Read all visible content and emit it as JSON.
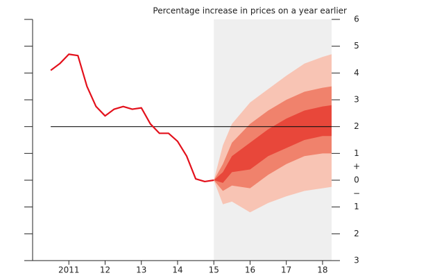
{
  "chart_data": {
    "type": "line",
    "title": "Percentage increase in prices on a year earlier",
    "x": [
      2010.5,
      2010.75,
      2011,
      2011.25,
      2011.5,
      2011.75,
      2012,
      2012.25,
      2012.5,
      2012.75,
      2013,
      2013.25,
      2013.5,
      2013.75,
      2014,
      2014.25,
      2014.5,
      2014.75,
      2015
    ],
    "series": [
      {
        "color": "#e3101b",
        "values": [
          4.1,
          4.35,
          4.7,
          4.65,
          3.5,
          2.75,
          2.4,
          2.65,
          2.75,
          2.65,
          2.7,
          2.1,
          1.75,
          1.75,
          1.45,
          0.9,
          0.05,
          -0.05,
          0
        ]
      }
    ],
    "fan": {
      "x": [
        2015,
        2015.25,
        2015.5,
        2016,
        2016.5,
        2017,
        2017.5,
        2018,
        2018.25
      ],
      "bands": [
        {
          "color": "#f8c4b4",
          "lower": [
            0,
            -0.9,
            -0.8,
            -1.2,
            -0.85,
            -0.6,
            -0.4,
            -0.3,
            -0.25
          ],
          "upper": [
            0,
            1.3,
            2.1,
            2.9,
            3.4,
            3.9,
            4.35,
            4.6,
            4.7
          ]
        },
        {
          "color": "#f0826c",
          "lower": [
            0,
            -0.4,
            -0.2,
            -0.3,
            0.2,
            0.6,
            0.9,
            1.0,
            1.0
          ],
          "upper": [
            0,
            0.6,
            1.4,
            2.1,
            2.6,
            3.0,
            3.3,
            3.45,
            3.5
          ]
        },
        {
          "color": "#e8473a",
          "lower": [
            0,
            -0.1,
            0.3,
            0.4,
            0.9,
            1.2,
            1.5,
            1.65,
            1.65
          ],
          "upper": [
            0,
            0.3,
            0.9,
            1.4,
            1.9,
            2.3,
            2.6,
            2.75,
            2.8
          ]
        }
      ]
    },
    "projection_start": 2015,
    "shade_color": "#efefef",
    "reference_line": 2,
    "xlim": [
      2010,
      2018.25
    ],
    "xticks": [
      2011,
      {
        "value": 2012,
        "label": "12"
      },
      {
        "value": 2013,
        "label": "13"
      },
      {
        "value": 2014,
        "label": "14"
      },
      {
        "value": 2015,
        "label": "15"
      },
      {
        "value": 2016,
        "label": "16"
      },
      {
        "value": 2017,
        "label": "17"
      },
      {
        "value": 2018,
        "label": "18"
      }
    ],
    "ylim": [
      -3,
      6
    ],
    "yticks": [
      6,
      5,
      4,
      3,
      2,
      1,
      0,
      {
        "value": -1,
        "label": "1"
      },
      {
        "value": -2,
        "label": "2"
      },
      {
        "value": -3,
        "label": "3"
      }
    ],
    "sign_labels": {
      "positive": "+",
      "negative": "−"
    }
  }
}
